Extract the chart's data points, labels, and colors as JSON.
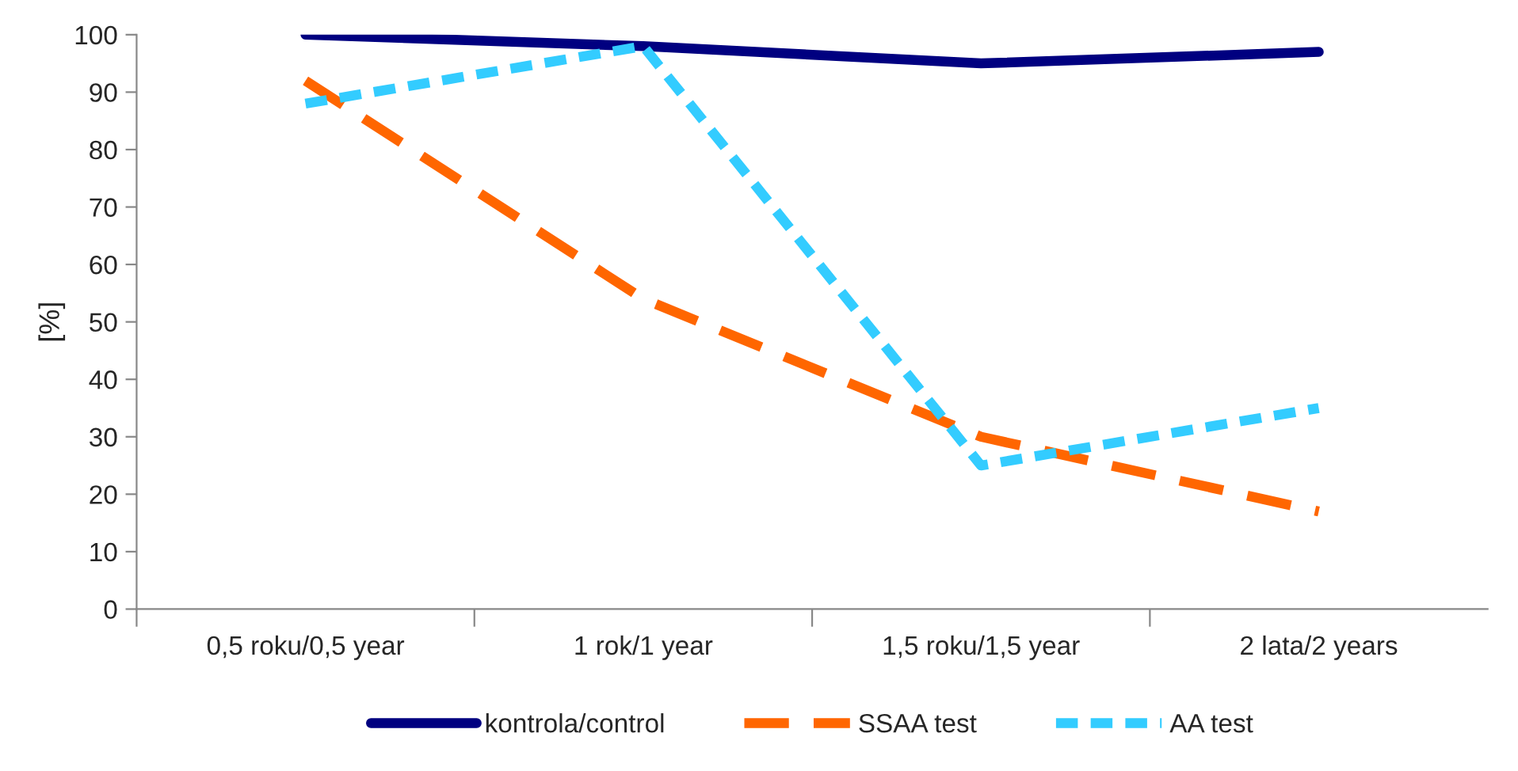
{
  "chart_data": {
    "type": "line",
    "ylabel": "[%]",
    "categories": [
      "0,5 roku/0,5 year",
      "1 rok/1 year",
      "1,5 roku/1,5 year",
      "2 lata/2 years"
    ],
    "series": [
      {
        "name": "kontrola/control",
        "color": "#000080",
        "line_style": "solid",
        "values": [
          100,
          98,
          95,
          97
        ]
      },
      {
        "name": "SSAA test",
        "color": "#ff6600",
        "line_style": "dashed",
        "values": [
          92,
          54,
          30,
          17
        ]
      },
      {
        "name": "AA test",
        "color": "#33ccff",
        "line_style": "dashed",
        "values": [
          88,
          98,
          25,
          35
        ]
      }
    ],
    "ylim": [
      0,
      100
    ],
    "yticks": [
      0,
      10,
      20,
      30,
      40,
      50,
      60,
      70,
      80,
      90,
      100
    ],
    "grid": false,
    "legend": "bottom",
    "marker": "none"
  }
}
